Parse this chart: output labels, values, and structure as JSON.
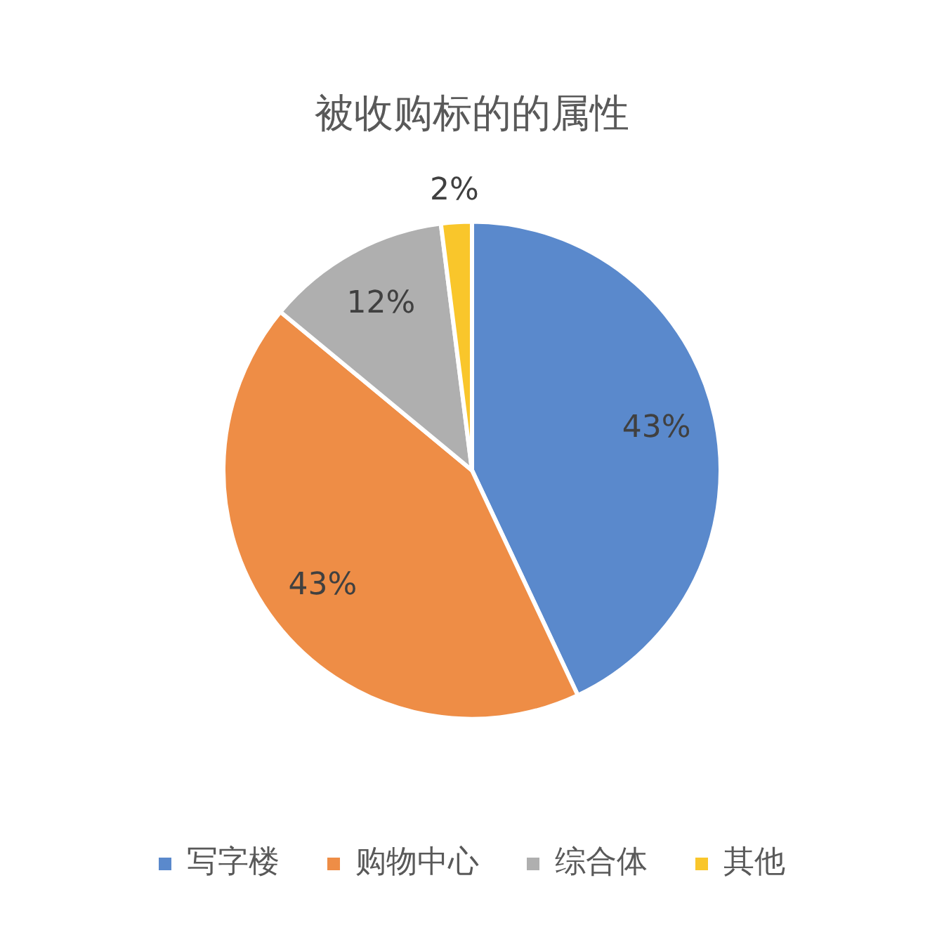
{
  "chart_data": {
    "type": "pie",
    "title": "被收购标的的属性",
    "categories": [
      "写字楼",
      "购物中心",
      "综合体",
      "其他"
    ],
    "values": [
      43,
      43,
      12,
      2
    ],
    "colors": [
      "#5a89cc",
      "#ee8d46",
      "#afafaf",
      "#f9c62b"
    ],
    "value_labels": [
      "43%",
      "43%",
      "12%",
      "2%"
    ],
    "legend": "bottom"
  }
}
